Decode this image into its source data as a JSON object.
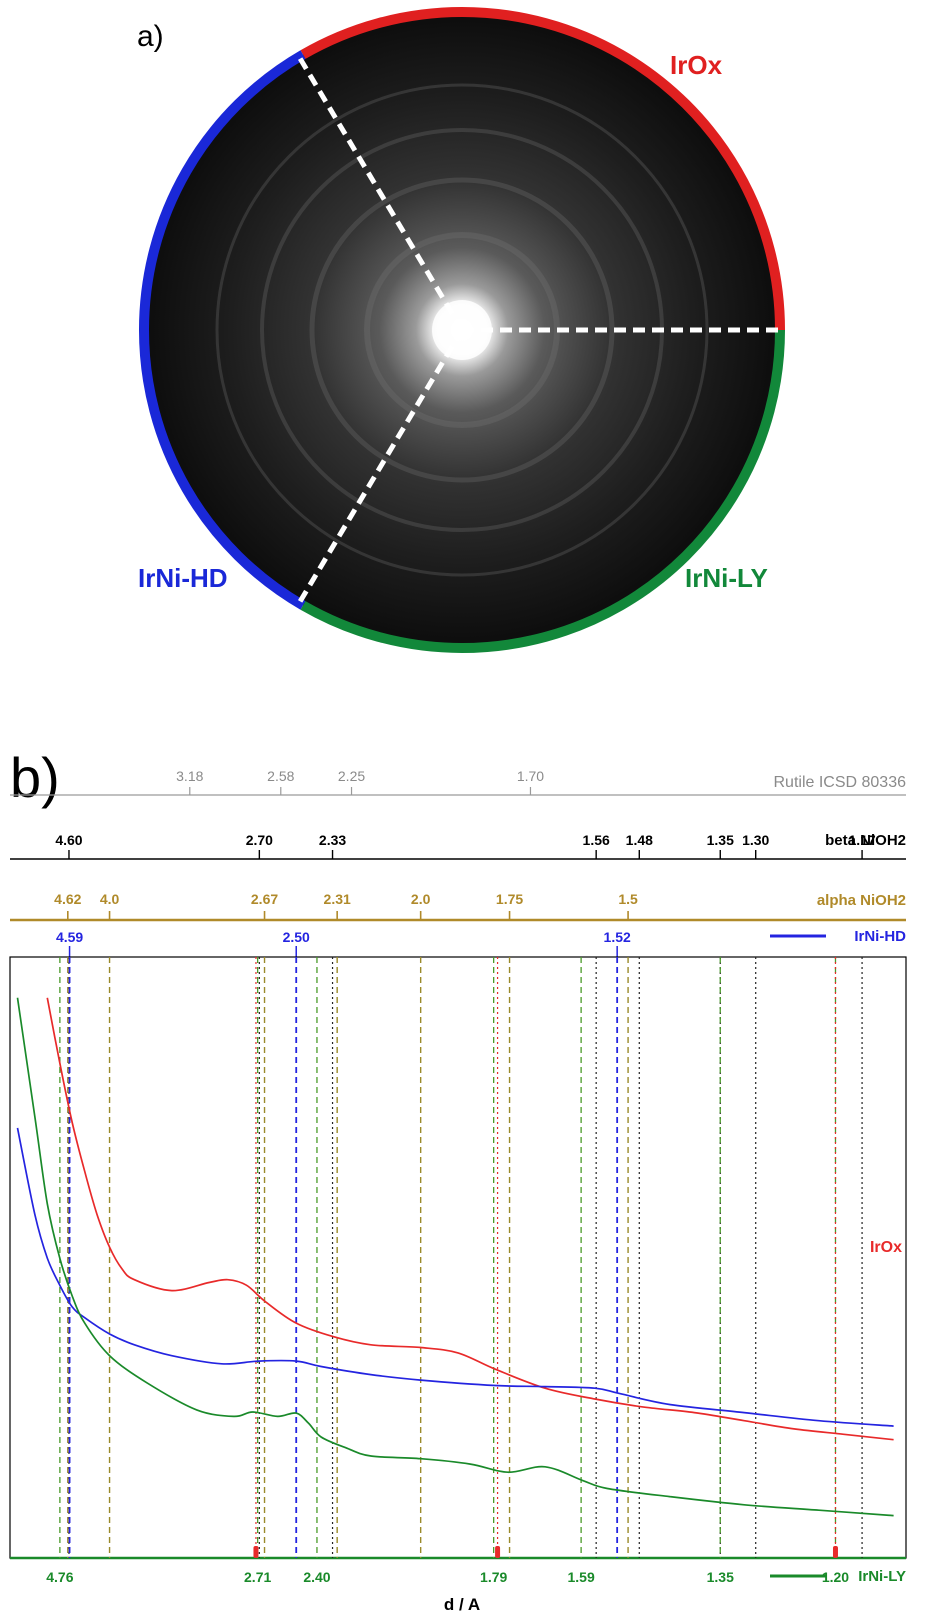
{
  "panel_a": {
    "letter": "a)",
    "segments": [
      {
        "label": "IrOx",
        "color": "#e02020"
      },
      {
        "label": "IrNi-HD",
        "color": "#1a28d8"
      },
      {
        "label": "IrNi-LY",
        "color": "#12883a"
      }
    ]
  },
  "panel_b": {
    "letter": "b)"
  },
  "colors": {
    "irox": "#e82a2a",
    "irnihd": "#2424e0",
    "irnily": "#1a8a2a",
    "beta": "#000000",
    "alpha": "#b08a2a",
    "rutile": "#9a9a9a"
  },
  "chart_data": {
    "type": "line",
    "xlabel": "d / A",
    "ylabel": "",
    "x_scale": "reciprocal (1/d)",
    "x_range_inv_angstrom": [
      0.17,
      0.89
    ],
    "grid": false,
    "reference_rows": [
      {
        "name": "Rutile ICSD 80336",
        "color": "#9a9a9a",
        "positions": [
          3.18,
          2.58,
          2.25,
          1.7
        ],
        "labels": [
          "3.18",
          "2.58",
          "2.25",
          "1.70"
        ]
      },
      {
        "name": "beta NiOH2",
        "color": "#000000",
        "positions": [
          4.6,
          2.7,
          2.33,
          1.56,
          1.48,
          1.35,
          1.3,
          1.17
        ],
        "labels": [
          "4.60",
          "2.70",
          "2.33",
          "1.56",
          "1.48",
          "1.35",
          "1.30",
          "1.17"
        ]
      },
      {
        "name": "alpha NiOH2",
        "color": "#b08a2a",
        "positions": [
          4.62,
          4.0,
          2.67,
          2.31,
          2.0,
          1.75,
          1.5
        ],
        "labels": [
          "4.62",
          "4.0",
          "2.67",
          "2.31",
          "2.0",
          "1.75",
          "1.5"
        ]
      },
      {
        "name": "IrNi-HD",
        "color": "#2424e0",
        "positions": [
          4.59,
          2.5,
          1.52
        ],
        "labels": [
          "4.59",
          "2.50",
          "1.52"
        ]
      },
      {
        "name": "IrNi-LY",
        "color": "#1a8a2a",
        "positions": [
          4.76,
          2.71,
          2.4,
          1.79,
          1.59,
          1.35,
          1.2
        ],
        "labels": [
          "4.76",
          "2.71",
          "2.40",
          "1.79",
          "1.59",
          "1.35",
          "1.20"
        ]
      }
    ],
    "irox_peaks": [
      2.72,
      1.78,
      1.2
    ],
    "series": [
      {
        "name": "IrOx",
        "color": "#e82a2a",
        "x": [
          0.2,
          0.21,
          0.22,
          0.23,
          0.24,
          0.25,
          0.26,
          0.27,
          0.3,
          0.33,
          0.345,
          0.36,
          0.375,
          0.4,
          0.43,
          0.46,
          0.5,
          0.53,
          0.56,
          0.6,
          0.64,
          0.68,
          0.72,
          0.76,
          0.8,
          0.84,
          0.88
        ],
        "y": [
          1.0,
          0.88,
          0.77,
          0.68,
          0.6,
          0.54,
          0.5,
          0.48,
          0.46,
          0.475,
          0.48,
          0.47,
          0.44,
          0.4,
          0.375,
          0.36,
          0.355,
          0.345,
          0.315,
          0.28,
          0.26,
          0.245,
          0.235,
          0.22,
          0.205,
          0.195,
          0.185
        ]
      },
      {
        "name": "IrNi-HD",
        "color": "#2424e0",
        "x": [
          0.176,
          0.19,
          0.2,
          0.21,
          0.22,
          0.23,
          0.25,
          0.27,
          0.3,
          0.34,
          0.37,
          0.4,
          0.42,
          0.46,
          0.5,
          0.56,
          0.6,
          0.64,
          0.66,
          0.7,
          0.76,
          0.82,
          0.88
        ],
        "y": [
          0.76,
          0.6,
          0.52,
          0.47,
          0.43,
          0.41,
          0.38,
          0.36,
          0.34,
          0.325,
          0.33,
          0.33,
          0.32,
          0.305,
          0.295,
          0.285,
          0.283,
          0.28,
          0.27,
          0.25,
          0.235,
          0.22,
          0.21
        ]
      },
      {
        "name": "IrNi-LY",
        "color": "#1a8a2a",
        "x": [
          0.176,
          0.19,
          0.2,
          0.21,
          0.22,
          0.23,
          0.25,
          0.28,
          0.32,
          0.35,
          0.365,
          0.385,
          0.4,
          0.41,
          0.42,
          0.44,
          0.46,
          0.5,
          0.54,
          0.57,
          0.6,
          0.63,
          0.65,
          0.7,
          0.76,
          0.82,
          0.88
        ],
        "y": [
          1.0,
          0.78,
          0.62,
          0.52,
          0.45,
          0.4,
          0.34,
          0.29,
          0.24,
          0.228,
          0.236,
          0.228,
          0.234,
          0.215,
          0.19,
          0.17,
          0.155,
          0.15,
          0.14,
          0.125,
          0.135,
          0.11,
          0.095,
          0.08,
          0.065,
          0.055,
          0.045
        ]
      }
    ]
  }
}
